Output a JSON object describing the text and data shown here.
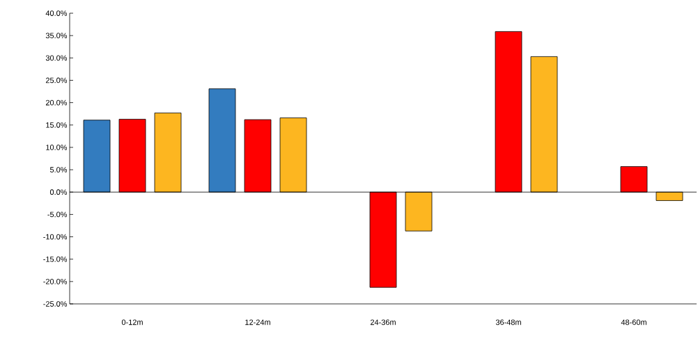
{
  "chart_data": {
    "type": "bar",
    "categories": [
      "0-12m",
      "12-24m",
      "24-36m",
      "36-48m",
      "48-60m"
    ],
    "series": [
      {
        "color": "#337cbf",
        "values": [
          16.1,
          23.1,
          null,
          null,
          null
        ]
      },
      {
        "color": "#ff0000",
        "values": [
          16.3,
          16.2,
          -21.3,
          35.9,
          5.7
        ]
      },
      {
        "color": "#fdb620",
        "values": [
          17.7,
          16.6,
          -8.7,
          30.3,
          -1.9
        ]
      }
    ],
    "ylim": [
      -25,
      40
    ],
    "yticks": [
      {
        "value": -25,
        "label": "-25.0%"
      },
      {
        "value": -20,
        "label": "-20.0%"
      },
      {
        "value": -15,
        "label": "-15.0%"
      },
      {
        "value": -10,
        "label": "-10.0%"
      },
      {
        "value": -5,
        "label": "-5.0%"
      },
      {
        "value": 0,
        "label": "0.0%"
      },
      {
        "value": 5,
        "label": "5.0%"
      },
      {
        "value": 10,
        "label": "10.0%"
      },
      {
        "value": 15,
        "label": "15.0%"
      },
      {
        "value": 20,
        "label": "20.0%"
      },
      {
        "value": 25,
        "label": "25.0%"
      },
      {
        "value": 30,
        "label": "30.0%"
      },
      {
        "value": 35,
        "label": "35.0%"
      },
      {
        "value": 40,
        "label": "40.0%"
      }
    ],
    "ref_lines": [
      {
        "axis": "y",
        "value": 0
      }
    ],
    "grid": false
  }
}
